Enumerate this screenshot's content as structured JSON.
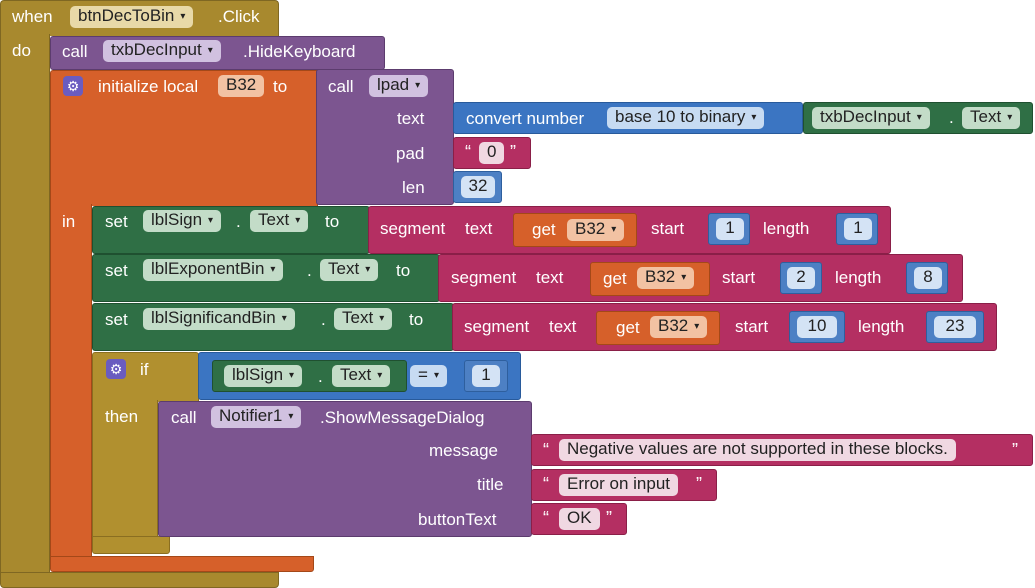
{
  "event": {
    "when": "when",
    "component": "btnDecToBin",
    "event_name": ".Click",
    "do": "do"
  },
  "hide_keyboard": {
    "call": "call",
    "component": "txbDecInput",
    "method": ".HideKeyboard"
  },
  "init_local": {
    "label": "initialize local",
    "var": "B32",
    "to": "to",
    "in": "in"
  },
  "lpad": {
    "call": "call",
    "procedure": "lpad",
    "text_label": "text",
    "pad_label": "pad",
    "pad_value": "0",
    "len_label": "len",
    "len_value": "32"
  },
  "convert": {
    "label": "convert number",
    "mode": "base 10 to binary",
    "component": "txbDecInput",
    "dot": ".",
    "property": "Text"
  },
  "set_sign": {
    "set": "set",
    "component": "lblSign",
    "dot": ".",
    "property": "Text",
    "to": "to",
    "segment": "segment",
    "text": "text",
    "get": "get",
    "var": "B32",
    "start": "start",
    "start_value": "1",
    "length": "length",
    "length_value": "1"
  },
  "set_exp": {
    "set": "set",
    "component": "lblExponentBin",
    "dot": ".",
    "property": "Text",
    "to": "to",
    "segment": "segment",
    "text": "text",
    "get": "get",
    "var": "B32",
    "start": "start",
    "start_value": "2",
    "length": "length",
    "length_value": "8"
  },
  "set_sig": {
    "set": "set",
    "component": "lblSignificandBin",
    "dot": ".",
    "property": "Text",
    "to": "to",
    "segment": "segment",
    "text": "text",
    "get": "get",
    "var": "B32",
    "start": "start",
    "start_value": "10",
    "length": "length",
    "length_value": "23"
  },
  "if_block": {
    "if": "if",
    "then": "then",
    "component": "lblSign",
    "dot": ".",
    "property": "Text",
    "operator": "=",
    "value": "1"
  },
  "notifier": {
    "call": "call",
    "component": "Notifier1",
    "method": ".ShowMessageDialog",
    "message_label": "message",
    "message": "Negative values are not supported in these blocks.",
    "title_label": "title",
    "title": "Error on input",
    "button_label": "buttonText",
    "button": "OK"
  },
  "quote_open": "“",
  "quote_close": "”",
  "dropdown_arrow": "▾",
  "colors": {
    "event": "#a8892e",
    "component_call": "#7c5590",
    "variable": "#d6602a",
    "setter": "#2f6f45",
    "text": "#b42f62",
    "math": "#3b75c2",
    "control": "#b1902f"
  }
}
